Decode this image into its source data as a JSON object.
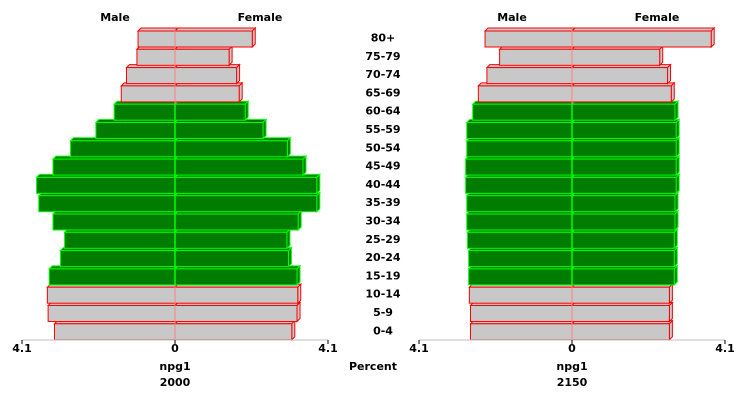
{
  "chart_data": {
    "type": "bar",
    "subtype": "population-pyramid",
    "center_label": "Percent",
    "categories": [
      "0-4",
      "5-9",
      "10-14",
      "15-19",
      "20-24",
      "25-29",
      "30-34",
      "35-39",
      "40-44",
      "45-49",
      "50-54",
      "55-59",
      "60-64",
      "65-69",
      "70-74",
      "75-79",
      "80+"
    ],
    "xlim": [
      -4.1,
      4.1
    ],
    "x_ticks": [
      "4.1",
      "0",
      "4.1"
    ],
    "panels": [
      {
        "model": "npg1",
        "year": "2000",
        "header_left": "Male",
        "header_right": "Female",
        "male": [
          3.23,
          3.4,
          3.42,
          3.37,
          3.07,
          2.96,
          3.27,
          3.65,
          3.71,
          3.27,
          2.8,
          2.12,
          1.63,
          1.44,
          1.3,
          1.02,
          0.99
        ],
        "female": [
          3.13,
          3.27,
          3.29,
          3.27,
          3.04,
          3.0,
          3.3,
          3.8,
          3.8,
          3.43,
          3.01,
          2.36,
          1.88,
          1.72,
          1.65,
          1.45,
          2.07
        ],
        "highlight": [
          "15-19",
          "20-24",
          "25-29",
          "30-34",
          "35-39",
          "40-44",
          "45-49",
          "50-54",
          "55-59",
          "60-64"
        ]
      },
      {
        "model": "npg1",
        "year": "2150",
        "header_left": "Male",
        "header_right": "Female",
        "male": [
          2.72,
          2.72,
          2.75,
          2.77,
          2.77,
          2.8,
          2.82,
          2.82,
          2.85,
          2.85,
          2.82,
          2.82,
          2.66,
          2.51,
          2.28,
          1.94,
          2.33
        ],
        "female": [
          2.61,
          2.61,
          2.61,
          2.74,
          2.74,
          2.74,
          2.76,
          2.76,
          2.79,
          2.79,
          2.79,
          2.79,
          2.76,
          2.66,
          2.56,
          2.35,
          3.73
        ],
        "highlight": [
          "15-19",
          "20-24",
          "25-29",
          "30-34",
          "35-39",
          "40-44",
          "45-49",
          "50-54",
          "55-59",
          "60-64"
        ]
      }
    ],
    "colors": {
      "highlight_fill": "#007c00",
      "highlight_border": "#00ff00",
      "normal_fill": "#c8c8c8",
      "normal_border": "#ff0000",
      "center_line": "#00ff00",
      "center_line_normal": "#ff8080"
    }
  }
}
